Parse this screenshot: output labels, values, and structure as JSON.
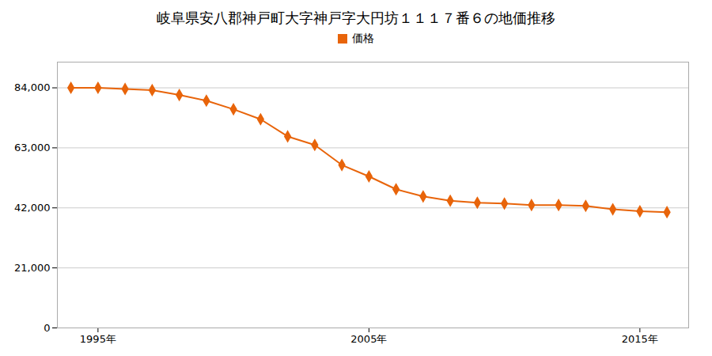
{
  "chart_data": {
    "type": "line",
    "title": "岐阜県安八郡神戸町大字神戸字大円坊１１１７番６の地価推移",
    "x": [
      1994,
      1995,
      1996,
      1997,
      1998,
      1999,
      2000,
      2001,
      2002,
      2003,
      2004,
      2005,
      2006,
      2007,
      2008,
      2009,
      2010,
      2011,
      2012,
      2013,
      2014,
      2015,
      2016
    ],
    "series": [
      {
        "name": "価格",
        "color": "#E8640A",
        "marker": "diamond",
        "values": [
          84000,
          84000,
          83600,
          83200,
          81500,
          79500,
          76500,
          73000,
          67000,
          64000,
          57000,
          53000,
          48500,
          46000,
          44500,
          43800,
          43500,
          43000,
          43000,
          42700,
          41500,
          40800,
          40500
        ]
      }
    ],
    "xlim": [
      1993.5,
      2016.8
    ],
    "xticks": [
      {
        "value": 1995,
        "label": "1995年"
      },
      {
        "value": 2005,
        "label": "2005年"
      },
      {
        "value": 2015,
        "label": "2015年"
      }
    ],
    "ylim": [
      0,
      93000
    ],
    "yticks": [
      0,
      {
        "value": 21000,
        "label": "21,000"
      },
      {
        "value": 42000,
        "label": "42,000"
      },
      {
        "value": 63000,
        "label": "63,000"
      },
      {
        "value": 84000,
        "label": "84,000"
      }
    ],
    "grid": "y",
    "legend": "top"
  }
}
